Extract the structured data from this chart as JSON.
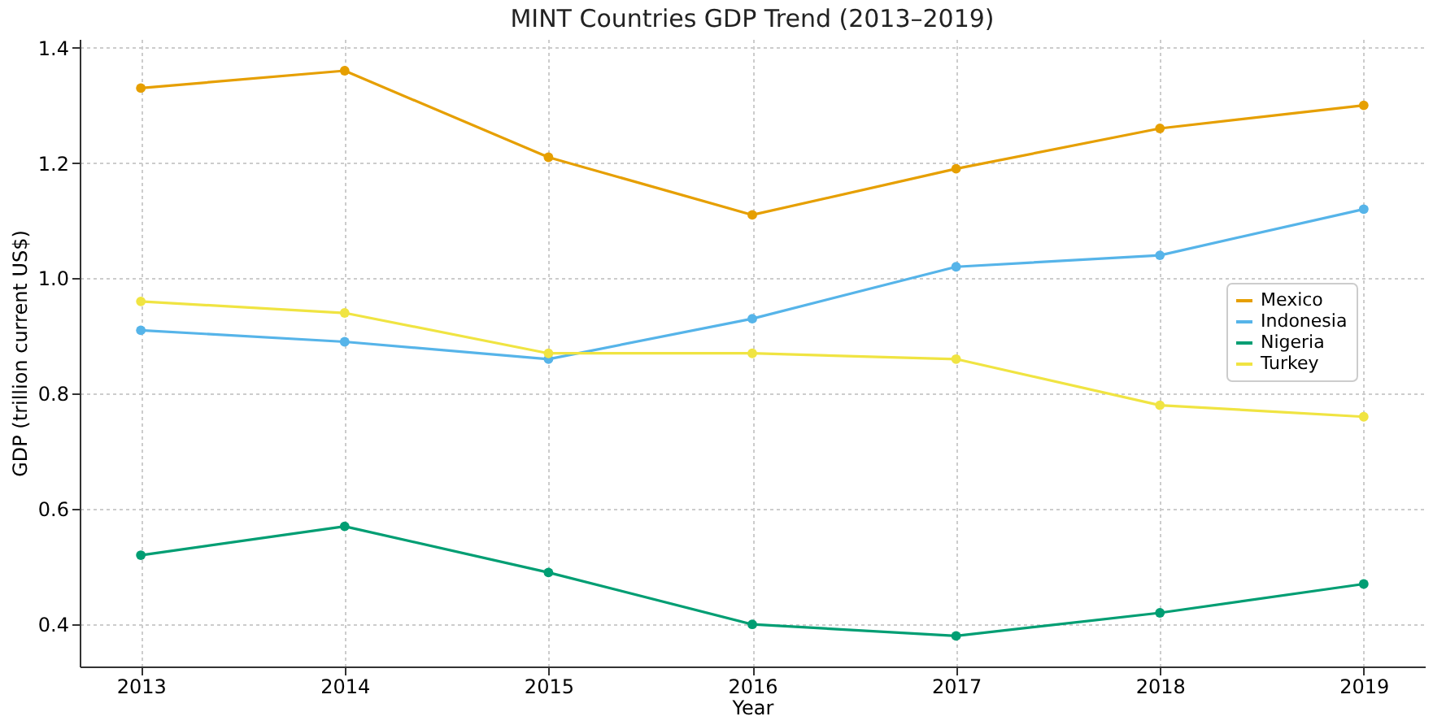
{
  "chart_data": {
    "type": "line",
    "title": "MINT Countries GDP Trend (2013–2019)",
    "xlabel": "Year",
    "ylabel": "GDP (trillion current US$)",
    "x": [
      2013,
      2014,
      2015,
      2016,
      2017,
      2018,
      2019
    ],
    "xlim": [
      2012.7,
      2019.3
    ],
    "xticks": [
      2013,
      2014,
      2015,
      2016,
      2017,
      2018,
      2019
    ],
    "ylim": [
      0.327,
      1.415
    ],
    "yticks": [
      0.4,
      0.6,
      0.8,
      {
        "value": 1,
        "label": "1.0"
      },
      1.2,
      1.4
    ],
    "grid": true,
    "legend": "right",
    "marker": "circle",
    "line_style": "solid",
    "series": [
      {
        "name": "Mexico",
        "color": "#e69f00",
        "values": [
          1.33,
          1.36,
          1.21,
          1.11,
          1.19,
          1.26,
          1.3
        ]
      },
      {
        "name": "Indonesia",
        "color": "#56b4e9",
        "values": [
          0.91,
          0.89,
          0.86,
          0.93,
          1.02,
          1.04,
          1.12
        ]
      },
      {
        "name": "Nigeria",
        "color": "#009e73",
        "values": [
          0.52,
          0.57,
          0.49,
          0.4,
          0.38,
          0.42,
          0.47
        ]
      },
      {
        "name": "Turkey",
        "color": "#f0e442",
        "values": [
          0.96,
          0.94,
          0.87,
          0.87,
          0.86,
          0.78,
          0.76
        ]
      }
    ]
  }
}
